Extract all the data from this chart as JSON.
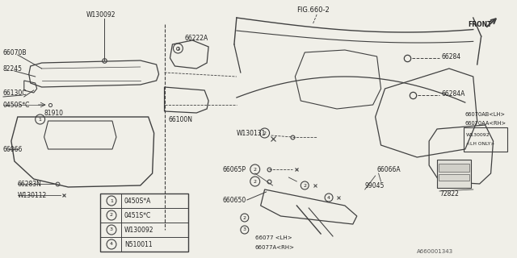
{
  "bg_color": "#f0efe8",
  "line_color": "#404040",
  "text_color": "#202020",
  "part_id": "A660001343",
  "fig_ref": "FIG.660-2",
  "legend_items": [
    {
      "num": "1",
      "code": "0450S*A"
    },
    {
      "num": "2",
      "code": "0451S*C"
    },
    {
      "num": "3",
      "code": "W130092"
    },
    {
      "num": "4",
      "code": "N510011"
    }
  ]
}
